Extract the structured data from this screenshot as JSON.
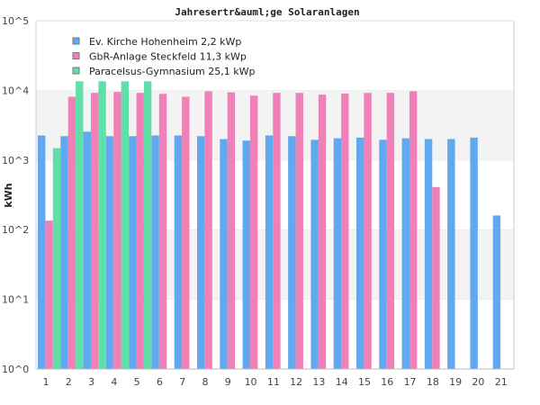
{
  "chart_data": {
    "type": "bar",
    "title": "Jahresertr&auml;ge Solaranlagen",
    "xlabel": "",
    "ylabel": "kWh",
    "yscale": "log",
    "ylim": [
      1,
      100000
    ],
    "ytick_labels": [
      "10^0",
      "10^1",
      "10^2",
      "10^3",
      "10^4",
      "10^5"
    ],
    "grid": true,
    "legend_position": "top-left",
    "categories": [
      "1",
      "2",
      "3",
      "4",
      "5",
      "6",
      "7",
      "8",
      "9",
      "10",
      "11",
      "12",
      "13",
      "14",
      "15",
      "16",
      "17",
      "18",
      "19",
      "20",
      "21"
    ],
    "series": [
      {
        "name": "Ev. Kirche Hohenheim 2,2 kWp",
        "color": "#60a8f0",
        "values": [
          2250,
          2200,
          2550,
          2200,
          2200,
          2250,
          2250,
          2200,
          2000,
          1900,
          2250,
          2200,
          1950,
          2050,
          2100,
          1950,
          2050,
          2000,
          2000,
          2100,
          160
        ]
      },
      {
        "name": "GbR-Anlage Steckfeld 11,3 kWp",
        "color": "#f080b8",
        "values": [
          135,
          8100,
          9200,
          9500,
          9200,
          8900,
          8100,
          9700,
          9400,
          8400,
          9200,
          9200,
          8700,
          9000,
          9200,
          9200,
          9700,
          410,
          null,
          null,
          null
        ]
      },
      {
        "name": "Paracelsus-Gymnasium 25,1 kWp",
        "color": "#60e0a8",
        "values": [
          1480,
          13500,
          13500,
          13500,
          13500,
          null,
          null,
          null,
          null,
          null,
          null,
          null,
          null,
          null,
          null,
          null,
          null,
          null,
          null,
          null,
          null
        ]
      }
    ]
  }
}
